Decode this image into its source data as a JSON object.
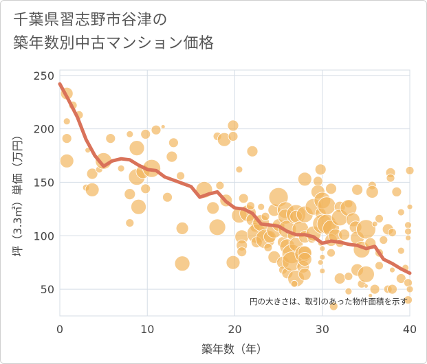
{
  "title": {
    "line1": "千葉県習志野市谷津の",
    "line2": "築年数別中古マンション価格"
  },
  "chart_data": {
    "type": "scatter",
    "xlabel": "築年数（年）",
    "ylabel": "坪（3.3㎡）単価（万円）",
    "xlim": [
      0,
      40
    ],
    "ylim": [
      25,
      255
    ],
    "xticks": [
      0,
      10,
      20,
      30,
      40
    ],
    "yticks": [
      50,
      100,
      150,
      200,
      250
    ],
    "grid": true,
    "note": "円の大きさは、取引のあった物件面積を示す",
    "colors": {
      "bubble": "#f2b45a",
      "line": "#d9725a",
      "grid": "#d5dde6"
    },
    "trend": {
      "x": [
        0,
        1,
        2,
        3,
        4,
        5,
        6,
        7,
        8,
        9,
        10,
        11,
        12,
        13,
        14,
        15,
        16,
        17,
        18,
        19,
        20,
        21,
        22,
        23,
        24,
        25,
        26,
        27,
        28,
        29,
        30,
        31,
        32,
        33,
        34,
        35,
        36,
        37,
        38,
        39,
        40
      ],
      "y": [
        242,
        227,
        211,
        190,
        175,
        165,
        170,
        172,
        171,
        166,
        162,
        161,
        155,
        152,
        149,
        146,
        136,
        139,
        141,
        132,
        126,
        125,
        121,
        111,
        110,
        109,
        104,
        101,
        101,
        99,
        93,
        95,
        94,
        92,
        91,
        88,
        90,
        78,
        74,
        69,
        65
      ]
    },
    "bubbles": [
      [
        0.8,
        233,
        9
      ],
      [
        1.5,
        222,
        6
      ],
      [
        2.2,
        213,
        6
      ],
      [
        0.8,
        207,
        5
      ],
      [
        0.8,
        191,
        7
      ],
      [
        0.8,
        170,
        10
      ],
      [
        3.0,
        145,
        5
      ],
      [
        3.7,
        143,
        10
      ],
      [
        3.7,
        158,
        8
      ],
      [
        4.5,
        162,
        5
      ],
      [
        5.0,
        170,
        12
      ],
      [
        5.8,
        191,
        7
      ],
      [
        7.0,
        163,
        5
      ],
      [
        8.0,
        195,
        5
      ],
      [
        8.0,
        139,
        8
      ],
      [
        8.0,
        112,
        6
      ],
      [
        8.8,
        182,
        11
      ],
      [
        8.8,
        155,
        12
      ],
      [
        9.0,
        127,
        11
      ],
      [
        9.5,
        160,
        10
      ],
      [
        9.8,
        144,
        7
      ],
      [
        9.8,
        195,
        7
      ],
      [
        10.5,
        163,
        13
      ],
      [
        11.0,
        199,
        7
      ],
      [
        11.8,
        202,
        3
      ],
      [
        12.3,
        136,
        7
      ],
      [
        12.8,
        174,
        8
      ],
      [
        13.0,
        187,
        7
      ],
      [
        13.8,
        156,
        6
      ],
      [
        14.0,
        107,
        9
      ],
      [
        14.0,
        74,
        11
      ],
      [
        16.5,
        143,
        12
      ],
      [
        17.5,
        126,
        9
      ],
      [
        18.0,
        193,
        6
      ],
      [
        18.0,
        108,
        12
      ],
      [
        18.3,
        147,
        6
      ],
      [
        18.8,
        190,
        10
      ],
      [
        19.0,
        133,
        9
      ],
      [
        19.8,
        203,
        8
      ],
      [
        19.8,
        193,
        7
      ],
      [
        19.8,
        75,
        10
      ],
      [
        20.5,
        119,
        11
      ],
      [
        20.8,
        99,
        10
      ],
      [
        20.8,
        91,
        8
      ],
      [
        20.8,
        85,
        7
      ],
      [
        21.0,
        135,
        7
      ],
      [
        21.5,
        121,
        12
      ],
      [
        21.8,
        128,
        6
      ],
      [
        22.0,
        115,
        9
      ],
      [
        22.0,
        179,
        8
      ],
      [
        22.3,
        108,
        7
      ],
      [
        22.5,
        102,
        14
      ],
      [
        22.5,
        94,
        8
      ],
      [
        23.0,
        127,
        5
      ],
      [
        23.0,
        112,
        12
      ],
      [
        23.5,
        97,
        14
      ],
      [
        23.5,
        118,
        6
      ],
      [
        23.8,
        89,
        6
      ],
      [
        24.0,
        99,
        9
      ],
      [
        24.5,
        124,
        9
      ],
      [
        24.5,
        105,
        11
      ],
      [
        24.5,
        80,
        9
      ],
      [
        25.0,
        136,
        14
      ],
      [
        25.0,
        110,
        9
      ],
      [
        25.5,
        94,
        8
      ],
      [
        25.5,
        75,
        9
      ],
      [
        25.5,
        68,
        6
      ],
      [
        25.8,
        124,
        12
      ],
      [
        25.8,
        118,
        11
      ],
      [
        26.0,
        106,
        13
      ],
      [
        26.0,
        90,
        11
      ],
      [
        26.0,
        65,
        8
      ],
      [
        26.5,
        100,
        6
      ],
      [
        26.5,
        83,
        14
      ],
      [
        26.5,
        76,
        14
      ],
      [
        27.0,
        120,
        14
      ],
      [
        27.0,
        118,
        9
      ],
      [
        27.0,
        92,
        10
      ],
      [
        27.0,
        60,
        12
      ],
      [
        27.5,
        106,
        12
      ],
      [
        27.8,
        83,
        12
      ],
      [
        27.8,
        71,
        9
      ],
      [
        28.0,
        153,
        10
      ],
      [
        28.0,
        120,
        12
      ],
      [
        28.0,
        99,
        9
      ],
      [
        28.0,
        84,
        10
      ],
      [
        28.0,
        78,
        10
      ],
      [
        28.0,
        64,
        9
      ],
      [
        28.8,
        97,
        6
      ],
      [
        29.0,
        127,
        12
      ],
      [
        29.0,
        102,
        11
      ],
      [
        29.5,
        151,
        7
      ],
      [
        29.5,
        141,
        10
      ],
      [
        29.8,
        162,
        8
      ],
      [
        29.8,
        121,
        8
      ],
      [
        29.8,
        93,
        4
      ],
      [
        29.8,
        75,
        4
      ],
      [
        30.0,
        133,
        12
      ],
      [
        30.0,
        111,
        14
      ],
      [
        30.0,
        88,
        4
      ],
      [
        30.0,
        80,
        4
      ],
      [
        30.0,
        67,
        4
      ],
      [
        30.5,
        128,
        13
      ],
      [
        30.5,
        111,
        14
      ],
      [
        31.0,
        144,
        8
      ],
      [
        31.0,
        107,
        12
      ],
      [
        31.0,
        96,
        9
      ],
      [
        31.0,
        84,
        6
      ],
      [
        31.3,
        34,
        6
      ],
      [
        31.5,
        100,
        10
      ],
      [
        32.0,
        127,
        8
      ],
      [
        32.0,
        117,
        12
      ],
      [
        32.0,
        93,
        6
      ],
      [
        32.0,
        60,
        8
      ],
      [
        32.5,
        101,
        8
      ],
      [
        33.0,
        130,
        6
      ],
      [
        33.0,
        126,
        12
      ],
      [
        33.0,
        62,
        6
      ],
      [
        33.0,
        48,
        5
      ],
      [
        33.5,
        115,
        10
      ],
      [
        33.8,
        108,
        9
      ],
      [
        34.0,
        143,
        8
      ],
      [
        34.0,
        98,
        10
      ],
      [
        34.0,
        68,
        9
      ],
      [
        34.5,
        87,
        12
      ],
      [
        34.5,
        55,
        6
      ],
      [
        35.0,
        106,
        14
      ],
      [
        35.0,
        64,
        12
      ],
      [
        35.0,
        53,
        3
      ],
      [
        35.5,
        93,
        8
      ],
      [
        35.5,
        44,
        3
      ],
      [
        35.7,
        147,
        6
      ],
      [
        35.7,
        141,
        9
      ],
      [
        36.0,
        50,
        7
      ],
      [
        36.5,
        116,
        6
      ],
      [
        36.5,
        84,
        6
      ],
      [
        36.5,
        72,
        6
      ],
      [
        37.0,
        96,
        6
      ],
      [
        37.5,
        106,
        8
      ],
      [
        37.5,
        50,
        6
      ],
      [
        37.8,
        159,
        7
      ],
      [
        37.8,
        154,
        6
      ],
      [
        38.0,
        103,
        6
      ],
      [
        38.0,
        50,
        7
      ],
      [
        38.5,
        141,
        7
      ],
      [
        39.0,
        122,
        5
      ],
      [
        39.0,
        86,
        5
      ],
      [
        39.0,
        60,
        7
      ],
      [
        39.5,
        70,
        5
      ],
      [
        39.8,
        110,
        5
      ],
      [
        39.8,
        104,
        5
      ],
      [
        39.8,
        98,
        4
      ],
      [
        39.8,
        56,
        6
      ],
      [
        39.8,
        40,
        6
      ],
      [
        40.0,
        161,
        6
      ],
      [
        40.0,
        127,
        4
      ],
      [
        40.0,
        50,
        5
      ],
      [
        38.0,
        68,
        4
      ],
      [
        36.0,
        111,
        4
      ],
      [
        26.8,
        55,
        5
      ],
      [
        20.5,
        162,
        5
      ],
      [
        3.2,
        180,
        4
      ]
    ]
  }
}
